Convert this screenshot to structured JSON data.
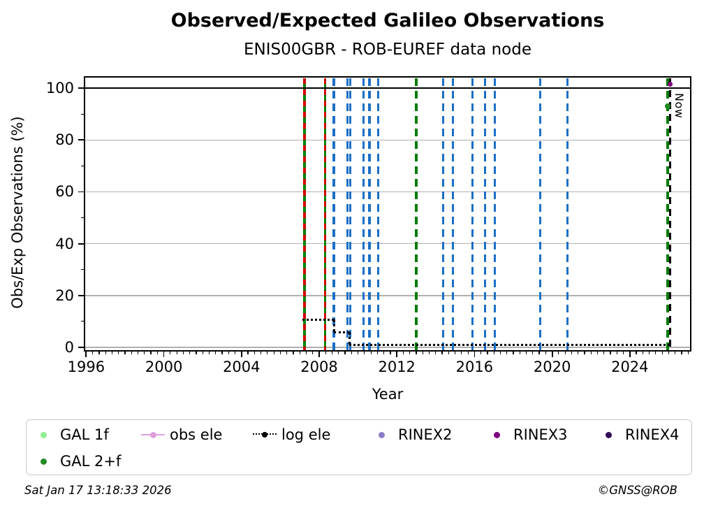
{
  "header": {
    "title": "Observed/Expected Galileo Observations",
    "subtitle": "ENIS00GBR - ROB-EUREF data node"
  },
  "chart_data": {
    "type": "line",
    "title": "Observed/Expected Galileo Observations",
    "subtitle": "ENIS00GBR - ROB-EUREF data node",
    "xlabel": "Year",
    "ylabel": "Obs/Exp Observations (%)",
    "xlim": [
      1995.95,
      2027.1
    ],
    "ylim": [
      -1.1,
      104.1
    ],
    "xticks": [
      1996,
      2000,
      2004,
      2008,
      2012,
      2016,
      2020,
      2024
    ],
    "yticks": [
      0,
      20,
      40,
      60,
      80,
      100
    ],
    "y_minor_ticks": [
      10,
      30,
      50,
      70,
      90
    ],
    "x_minor_step_years": 0.3333,
    "grid": "horizontal-only",
    "reference_line_y": 100,
    "now_label": "Now",
    "now_year": 2026.1,
    "events": [
      {
        "year": 2007.24,
        "kind": "green_red_solid"
      },
      {
        "year": 2008.3,
        "kind": "green_red_solid"
      },
      {
        "year": 2008.76,
        "kind": "blue_dashed"
      },
      {
        "year": 2009.47,
        "kind": "blue_dashed"
      },
      {
        "year": 2009.6,
        "kind": "blue_dashed"
      },
      {
        "year": 2010.28,
        "kind": "blue_dashed"
      },
      {
        "year": 2010.6,
        "kind": "blue_dashed"
      },
      {
        "year": 2011.04,
        "kind": "blue_dashed"
      },
      {
        "year": 2013.0,
        "kind": "green_dashed"
      },
      {
        "year": 2014.4,
        "kind": "blue_dashed"
      },
      {
        "year": 2014.9,
        "kind": "blue_dashed"
      },
      {
        "year": 2015.9,
        "kind": "blue_dashed"
      },
      {
        "year": 2016.56,
        "kind": "blue_dashed"
      },
      {
        "year": 2017.06,
        "kind": "blue_dashed"
      },
      {
        "year": 2019.4,
        "kind": "blue_dashed"
      },
      {
        "year": 2020.79,
        "kind": "blue_dashed"
      },
      {
        "year": 2025.95,
        "kind": "green_dashed"
      },
      {
        "year": 2026.1,
        "kind": "now_black_dashed"
      }
    ],
    "series": [
      {
        "name": "log ele",
        "style": "dotted-step",
        "color": "#000000",
        "points": [
          [
            2007.12,
            10.7
          ],
          [
            2008.76,
            10.7
          ],
          [
            2008.76,
            5.8
          ],
          [
            2009.55,
            5.8
          ],
          [
            2009.55,
            1.0
          ],
          [
            2026.05,
            1.0
          ]
        ]
      }
    ],
    "markers": [
      {
        "name": "RINEX3",
        "x": 2026.08,
        "y": 101.5,
        "color": "#800080",
        "size": 7
      },
      {
        "name": "GAL 2+f",
        "x": 2025.95,
        "y": 93.0,
        "color": "#228b22",
        "size": 8
      }
    ],
    "colors": {
      "blue_event": "#1c6fc6",
      "green_event": "#008000",
      "red_event": "#d40000",
      "now_line": "#000000",
      "gridline": "#b0b0b0"
    }
  },
  "legend": {
    "items": [
      {
        "label": "GAL 1f",
        "marker": "dot",
        "color": "#90ee90",
        "row": 1,
        "col": 1
      },
      {
        "label": "obs ele",
        "marker": "line-dot",
        "color": "#dda0dd",
        "row": 1,
        "col": 2
      },
      {
        "label": "log ele",
        "marker": "dotted-dot",
        "color": "#000000",
        "row": 1,
        "col": 3
      },
      {
        "label": "RINEX2",
        "marker": "dot",
        "color": "#8d7dc7",
        "row": 1,
        "col": 4
      },
      {
        "label": "RINEX3",
        "marker": "dot",
        "color": "#800080",
        "row": 1,
        "col": 5
      },
      {
        "label": "RINEX4",
        "marker": "dot",
        "color": "#2e0854",
        "row": 1,
        "col": 6
      },
      {
        "label": "GAL 2+f",
        "marker": "dot",
        "color": "#228b22",
        "row": 2,
        "col": 1
      }
    ]
  },
  "footer": {
    "timestamp": "Sat Jan 17 13:18:33 2026",
    "copyright": "©GNSS@ROB"
  }
}
